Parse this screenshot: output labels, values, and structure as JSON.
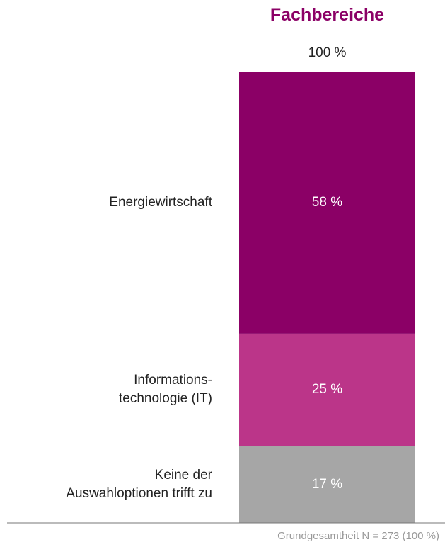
{
  "chart_data": {
    "type": "stacked_bar",
    "title": "Fachbereiche",
    "total_label": "100 %",
    "series": [
      {
        "name": "Energiewirtschaft",
        "color": "#8b0066",
        "values": [
          58
        ],
        "value_labels": [
          "58 %"
        ]
      },
      {
        "name": "Informations-\ntechnologie (IT)",
        "color": "#bb3589",
        "values": [
          25
        ],
        "value_labels": [
          "25 %"
        ]
      },
      {
        "name": "Keine der\nAuswahloptionen trifft zu",
        "color": "#a6a6a6",
        "values": [
          17
        ],
        "value_labels": [
          "17 %"
        ]
      }
    ],
    "footnote": "Grundgesamtheit N = 273 (100 %)"
  }
}
